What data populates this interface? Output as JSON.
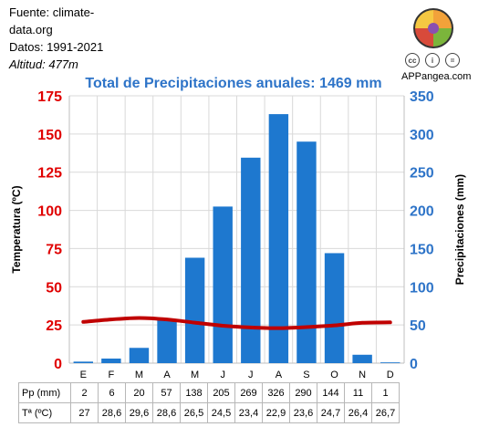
{
  "meta": {
    "source_line1": "Fuente: climate-",
    "source_line2": "data.org",
    "years": "Datos: 1991-2021",
    "altitude": "Altitud: 477m"
  },
  "brand": {
    "name": "APPangea.com",
    "cc": "cc",
    "by": "i",
    "nd": "="
  },
  "colors": {
    "bar": "#1e78cf",
    "temp_line": "#c00000",
    "left_axis": "#e00000",
    "right_axis": "#2e74c8",
    "title": "#2e74c8"
  },
  "table": {
    "row1_label": "Pp (mm)",
    "row2_label": "Tª (ºC)",
    "pp": [
      "2",
      "6",
      "20",
      "57",
      "138",
      "205",
      "269",
      "326",
      "290",
      "144",
      "11",
      "1"
    ],
    "temp": [
      "27",
      "28,6",
      "29,6",
      "28,6",
      "26,5",
      "24,5",
      "23,4",
      "22,9",
      "23,6",
      "24,7",
      "26,4",
      "26,7"
    ]
  },
  "chart_data": {
    "type": "bar",
    "title": "Total de Precipitaciones anuales: 1469 mm",
    "categories": [
      "E",
      "F",
      "M",
      "A",
      "M",
      "J",
      "J",
      "A",
      "S",
      "O",
      "N",
      "D"
    ],
    "series": [
      {
        "name": "Precipitaciones",
        "axis": "right",
        "type": "bar",
        "values": [
          2,
          6,
          20,
          57,
          138,
          205,
          269,
          326,
          290,
          144,
          11,
          1
        ]
      },
      {
        "name": "Temperatura",
        "axis": "left",
        "type": "line",
        "values": [
          27,
          28.6,
          29.6,
          28.6,
          26.5,
          24.5,
          23.4,
          22.9,
          23.6,
          24.7,
          26.4,
          26.7
        ]
      }
    ],
    "ylabel_left": "Temperatura (ºC)",
    "ylabel_right": "Precipitaciones (mm)",
    "ylim_left": [
      0,
      175
    ],
    "ylim_right": [
      0,
      350
    ],
    "yticks_left": [
      0,
      25,
      50,
      75,
      100,
      125,
      150,
      175
    ],
    "yticks_right": [
      0,
      50,
      100,
      150,
      200,
      250,
      300,
      350
    ],
    "grid": true
  }
}
